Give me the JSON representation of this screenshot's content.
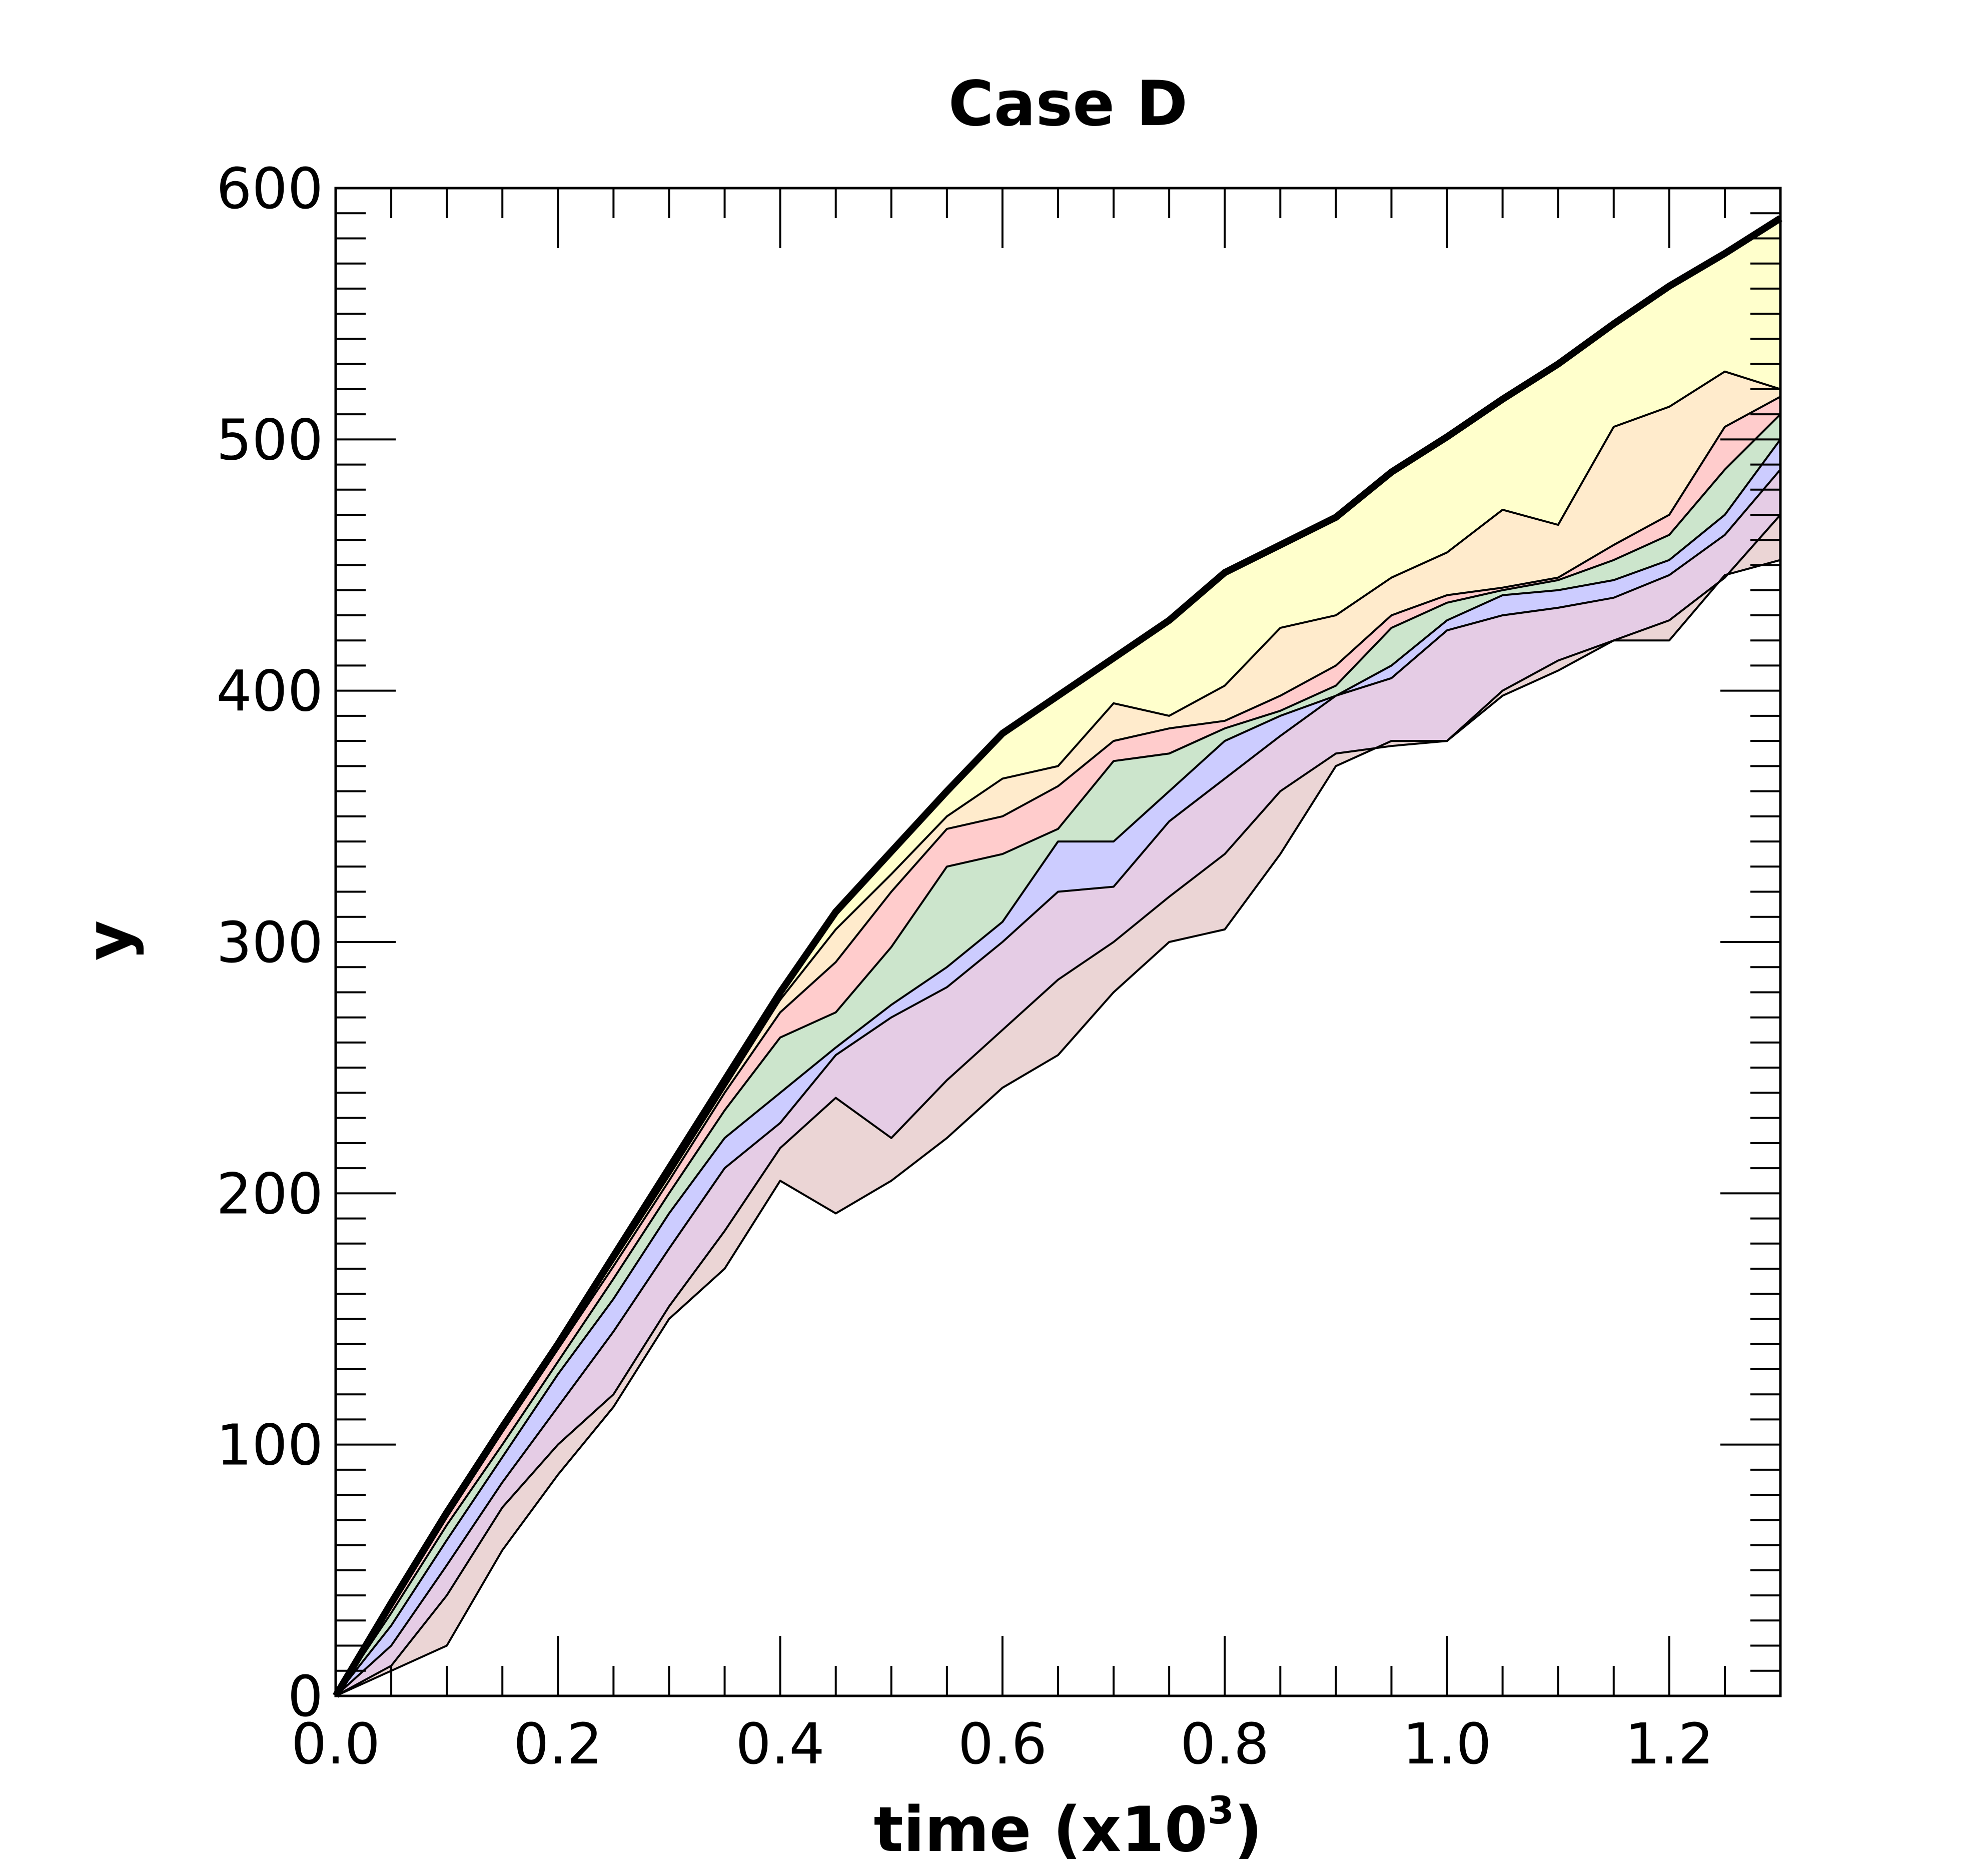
{
  "chart_data": {
    "type": "area",
    "title": "Case D",
    "xlabel": "time  (x10",
    "xlabel_sup": "3",
    "xlabel_close": ")",
    "ylabel": "y",
    "xlim": [
      0,
      1.3
    ],
    "ylim": [
      0,
      600
    ],
    "grid": false,
    "x_ticks": [
      "0.0",
      "0.2",
      "0.4",
      "0.6",
      "0.8",
      "1.0",
      "1.2"
    ],
    "y_ticks": [
      "0",
      "100",
      "200",
      "300",
      "400",
      "500",
      "600"
    ],
    "x": [
      0,
      0.05,
      0.1,
      0.15,
      0.2,
      0.25,
      0.3,
      0.35,
      0.4,
      0.45,
      0.5,
      0.55,
      0.6,
      0.65,
      0.7,
      0.75,
      0.8,
      0.85,
      0.9,
      0.95,
      1.0,
      1.05,
      1.1,
      1.15,
      1.2,
      1.25,
      1.3
    ],
    "boundaries": [
      {
        "name": "top",
        "values": [
          0,
          37,
          73,
          107,
          140,
          175,
          210,
          245,
          280,
          312,
          336,
          360,
          383,
          398,
          413,
          428,
          447,
          458,
          469,
          487,
          501,
          516,
          530,
          546,
          561,
          574,
          588
        ]
      },
      {
        "name": "b1",
        "values": [
          0,
          36,
          72,
          106,
          139,
          173,
          207,
          242,
          277,
          305,
          327,
          350,
          365,
          370,
          395,
          390,
          402,
          425,
          430,
          445,
          455,
          472,
          466,
          505,
          513,
          527,
          520
        ]
      },
      {
        "name": "b2",
        "values": [
          0,
          35,
          71,
          105,
          138,
          171,
          205,
          240,
          272,
          292,
          320,
          345,
          350,
          362,
          380,
          385,
          388,
          398,
          410,
          430,
          438,
          441,
          445,
          458,
          470,
          505,
          517
        ]
      },
      {
        "name": "b3",
        "values": [
          0,
          33,
          68,
          100,
          133,
          166,
          200,
          233,
          262,
          272,
          298,
          330,
          335,
          345,
          372,
          375,
          385,
          392,
          402,
          425,
          435,
          440,
          444,
          452,
          462,
          488,
          510
        ]
      },
      {
        "name": "b4",
        "values": [
          0,
          28,
          62,
          95,
          128,
          158,
          192,
          222,
          240,
          258,
          275,
          290,
          308,
          340,
          340,
          360,
          380,
          390,
          398,
          410,
          428,
          438,
          440,
          444,
          452,
          470,
          500
        ]
      },
      {
        "name": "b5",
        "values": [
          0,
          20,
          52,
          85,
          115,
          145,
          178,
          210,
          228,
          255,
          270,
          282,
          300,
          320,
          322,
          348,
          365,
          382,
          398,
          405,
          424,
          430,
          433,
          437,
          446,
          462,
          488
        ]
      },
      {
        "name": "b6",
        "values": [
          0,
          12,
          40,
          75,
          100,
          120,
          155,
          185,
          218,
          238,
          222,
          245,
          265,
          285,
          300,
          318,
          335,
          360,
          375,
          378,
          380,
          398,
          408,
          420,
          428,
          445,
          470
        ]
      },
      {
        "name": "b7",
        "values": [
          0,
          10,
          20,
          58,
          88,
          115,
          150,
          170,
          205,
          192,
          205,
          222,
          242,
          255,
          280,
          300,
          305,
          335,
          370,
          380,
          380,
          400,
          412,
          420,
          420,
          446,
          452
        ]
      }
    ],
    "band_colors": [
      "#ffffcc",
      "#ffebcc",
      "#ffcccc",
      "#cce5cc",
      "#ccccff",
      "#e5cce5",
      "#ebd5d5"
    ]
  }
}
